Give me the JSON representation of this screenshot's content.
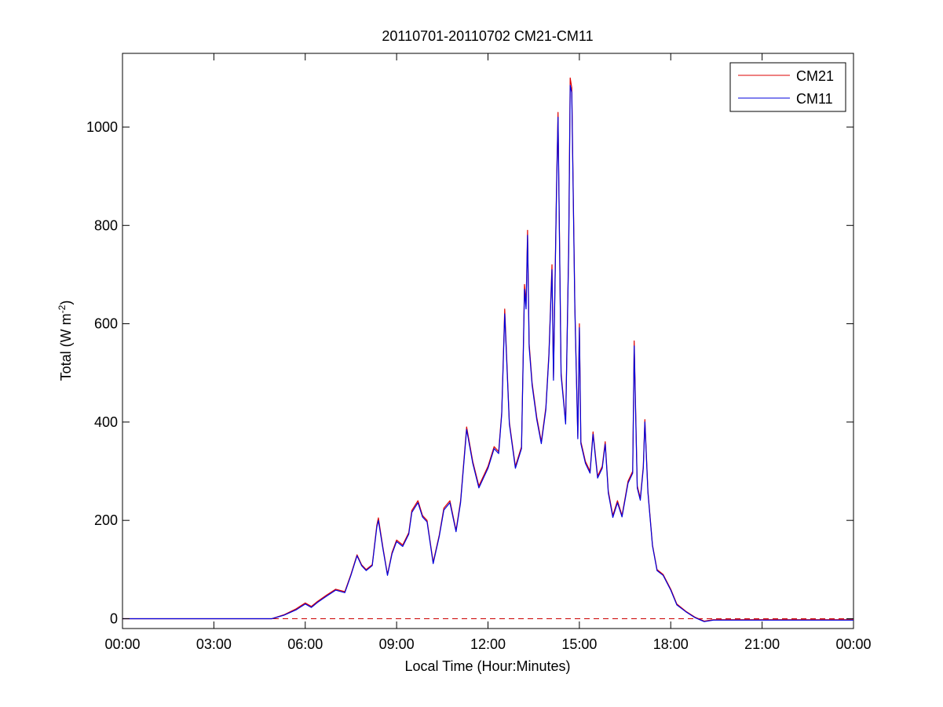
{
  "chart_data": {
    "type": "line",
    "title": "20110701-20110702 CM21-CM11",
    "xlabel": "Local Time (Hour:Minutes)",
    "ylabel_main": "Total (W m",
    "ylabel_sup": "-2",
    "ylabel_close": ")",
    "xlim": [
      0,
      24
    ],
    "ylim": [
      -20,
      1150
    ],
    "x_ticks": [
      0,
      3,
      6,
      9,
      12,
      15,
      18,
      21,
      24
    ],
    "x_tick_labels": [
      "00:00",
      "03:00",
      "06:00",
      "09:00",
      "12:00",
      "15:00",
      "18:00",
      "21:00",
      "00:00"
    ],
    "y_ticks": [
      0,
      200,
      400,
      600,
      800,
      1000
    ],
    "y_tick_labels": [
      "0",
      "200",
      "400",
      "600",
      "800",
      "1000"
    ],
    "grid": false,
    "legend_position": "top-right",
    "zero_line": {
      "y": 0,
      "color": "#cc0000",
      "style": "dashed"
    },
    "series": [
      {
        "name": "CM21",
        "color": "#dd0000",
        "x": [
          0,
          4.9,
          5.3,
          5.7,
          6.0,
          6.2,
          6.4,
          6.7,
          7.0,
          7.3,
          7.5,
          7.7,
          7.85,
          8.0,
          8.2,
          8.35,
          8.4,
          8.55,
          8.7,
          8.85,
          9.0,
          9.2,
          9.4,
          9.5,
          9.7,
          9.85,
          10.0,
          10.2,
          10.4,
          10.55,
          10.75,
          10.95,
          11.1,
          11.3,
          11.5,
          11.7,
          12.0,
          12.2,
          12.35,
          12.45,
          12.55,
          12.7,
          12.9,
          13.1,
          13.2,
          13.25,
          13.3,
          13.35,
          13.45,
          13.6,
          13.75,
          13.9,
          14.0,
          14.1,
          14.15,
          14.25,
          14.3,
          14.4,
          14.55,
          14.65,
          14.7,
          14.75,
          14.85,
          14.95,
          15.0,
          15.05,
          15.2,
          15.35,
          15.45,
          15.6,
          15.75,
          15.85,
          15.95,
          16.1,
          16.25,
          16.4,
          16.6,
          16.75,
          16.8,
          16.9,
          17.0,
          17.1,
          17.15,
          17.25,
          17.4,
          17.55,
          17.75,
          18.0,
          18.2,
          18.5,
          18.8,
          19.1,
          19.4,
          20.0,
          22.0,
          23.0,
          24.0
        ],
        "y": [
          0,
          0,
          8,
          20,
          32,
          25,
          35,
          48,
          60,
          55,
          90,
          130,
          110,
          100,
          110,
          190,
          205,
          145,
          90,
          135,
          160,
          150,
          175,
          220,
          240,
          210,
          200,
          115,
          170,
          225,
          240,
          180,
          240,
          390,
          320,
          270,
          310,
          350,
          340,
          420,
          630,
          400,
          310,
          350,
          680,
          640,
          790,
          560,
          480,
          410,
          360,
          430,
          540,
          720,
          490,
          880,
          1030,
          500,
          400,
          760,
          1100,
          1080,
          640,
          370,
          600,
          360,
          320,
          300,
          380,
          290,
          310,
          360,
          260,
          210,
          240,
          210,
          280,
          300,
          565,
          270,
          245,
          310,
          405,
          260,
          150,
          100,
          90,
          60,
          30,
          15,
          3,
          -5,
          -2,
          -2,
          -2,
          -2,
          -2
        ]
      },
      {
        "name": "CM11",
        "color": "#0000dd",
        "x": [
          0,
          4.9,
          5.3,
          5.7,
          6.0,
          6.2,
          6.4,
          6.7,
          7.0,
          7.3,
          7.5,
          7.7,
          7.85,
          8.0,
          8.2,
          8.35,
          8.4,
          8.55,
          8.7,
          8.85,
          9.0,
          9.2,
          9.4,
          9.5,
          9.7,
          9.85,
          10.0,
          10.2,
          10.4,
          10.55,
          10.75,
          10.95,
          11.1,
          11.3,
          11.5,
          11.7,
          12.0,
          12.2,
          12.35,
          12.45,
          12.55,
          12.7,
          12.9,
          13.1,
          13.2,
          13.25,
          13.3,
          13.35,
          13.45,
          13.6,
          13.75,
          13.9,
          14.0,
          14.1,
          14.15,
          14.25,
          14.3,
          14.4,
          14.55,
          14.65,
          14.7,
          14.75,
          14.85,
          14.95,
          15.0,
          15.05,
          15.2,
          15.35,
          15.45,
          15.6,
          15.75,
          15.85,
          15.95,
          16.1,
          16.25,
          16.4,
          16.6,
          16.75,
          16.8,
          16.9,
          17.0,
          17.1,
          17.15,
          17.25,
          17.4,
          17.55,
          17.75,
          18.0,
          18.2,
          18.5,
          18.8,
          19.1,
          19.4,
          20.0,
          22.0,
          23.0,
          24.0
        ],
        "y": [
          0,
          0,
          7,
          18,
          30,
          23,
          33,
          46,
          58,
          53,
          88,
          128,
          108,
          98,
          108,
          186,
          200,
          142,
          88,
          132,
          157,
          147,
          172,
          216,
          236,
          207,
          197,
          112,
          167,
          221,
          236,
          177,
          236,
          385,
          316,
          266,
          306,
          346,
          336,
          416,
          620,
          396,
          306,
          346,
          670,
          630,
          780,
          553,
          475,
          405,
          356,
          425,
          534,
          710,
          485,
          870,
          1020,
          495,
          396,
          750,
          1085,
          1070,
          632,
          366,
          592,
          356,
          316,
          296,
          375,
          286,
          306,
          355,
          256,
          206,
          236,
          207,
          276,
          296,
          555,
          266,
          241,
          306,
          400,
          256,
          148,
          98,
          88,
          58,
          28,
          14,
          2,
          -6,
          -3,
          -3,
          -3,
          -3,
          -3
        ]
      }
    ]
  }
}
